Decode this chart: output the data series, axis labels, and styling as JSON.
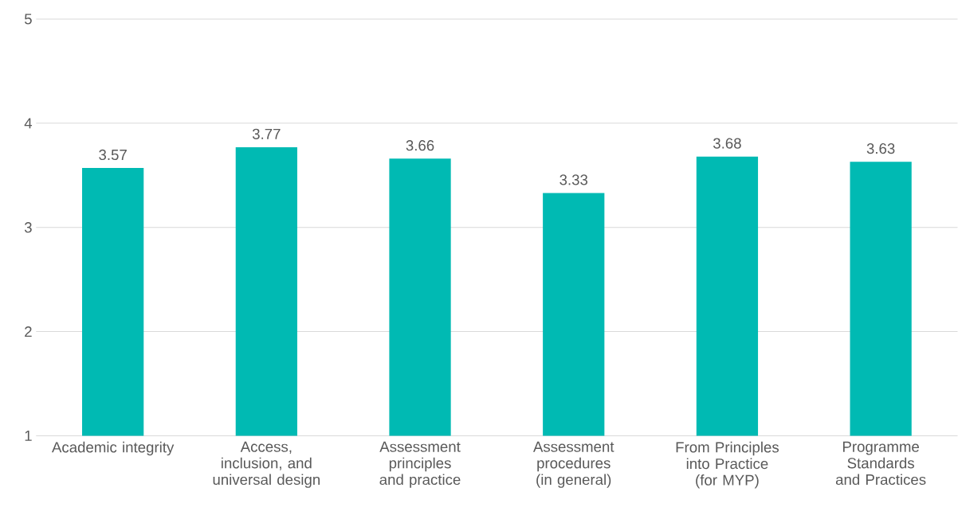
{
  "chart_data": {
    "type": "bar",
    "categories": [
      "Academic integrity",
      "Access, inclusion, and universal design",
      "Assessment principles and practice",
      "Assessment procedures (in general)",
      "From Principles into Practice (for MYP)",
      "Programme Standards and Practices"
    ],
    "values": [
      3.57,
      3.77,
      3.66,
      3.33,
      3.68,
      3.63
    ],
    "color": "#00bab3",
    "ylim": [
      1,
      5
    ],
    "yticks": [
      1,
      2,
      3,
      4,
      5
    ],
    "grid": "y",
    "data_labels": true
  }
}
